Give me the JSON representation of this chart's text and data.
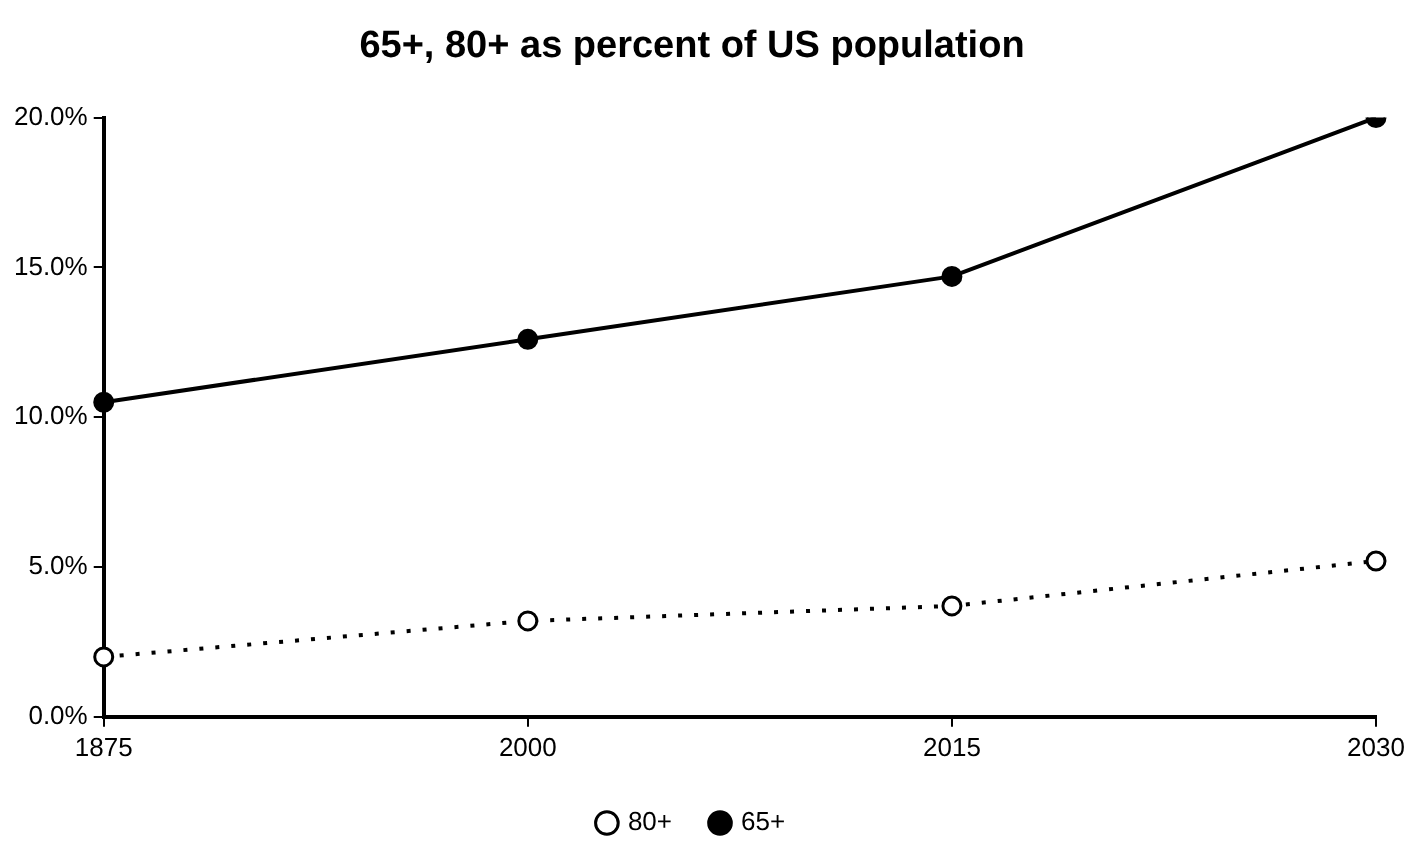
{
  "chart_data": {
    "type": "line",
    "title": "65+, 80+ as percent of US population",
    "categories": [
      "1875",
      "2000",
      "2015",
      "2030"
    ],
    "series": [
      {
        "name": "80+",
        "color": "#000000",
        "values": [
          2.0,
          3.2,
          3.7,
          5.2
        ],
        "line_style": "dotted",
        "marker": "circle"
      },
      {
        "name": "65+",
        "color": "#000000",
        "values": [
          10.5,
          12.6,
          14.7,
          20.0
        ],
        "line_style": "solid",
        "marker": "circle"
      }
    ],
    "ylim": [
      0,
      20
    ],
    "yticks": [
      {
        "value": 0,
        "label": "0.0%"
      },
      {
        "value": 5,
        "label": "5.0%"
      },
      {
        "value": 10,
        "label": "10.0%"
      },
      {
        "value": 15,
        "label": "15.0%"
      },
      {
        "value": 20,
        "label": "20.0%"
      }
    ],
    "grid": false,
    "legend": "bottom"
  }
}
